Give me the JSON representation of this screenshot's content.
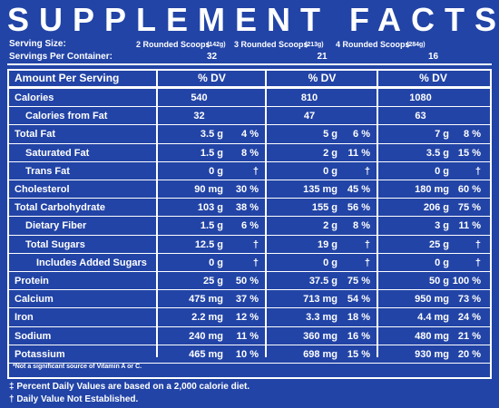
{
  "header": {
    "title": "SUPPLEMENT FACTS"
  },
  "serving_size": {
    "label": "Serving Size:",
    "sizes": [
      {
        "text": "2 Rounded Scoops",
        "weight": "(142g)"
      },
      {
        "text": "3 Rounded Scoops",
        "weight": "(213g)"
      },
      {
        "text": "4 Rounded Scoops",
        "weight": "(284g)"
      }
    ]
  },
  "servings_per_container": {
    "label": "Servings Per Container:",
    "values": [
      "32",
      "21",
      "16"
    ]
  },
  "table": {
    "header": [
      "Amount Per Serving",
      "% DV",
      "% DV",
      "% DV"
    ],
    "rows": [
      {
        "name": "Calories",
        "cells": [
          [
            "540"
          ],
          [
            "810"
          ],
          [
            "1080"
          ]
        ],
        "rows": [
          {
            "name": "Calories from Fat",
            "cells": [
              [
                "32"
              ],
              [
                "47"
              ],
              [
                "63"
              ]
            ]
          }
        ]
      },
      {
        "name": "Total Fat",
        "cells": [
          [
            "3.5 g",
            "4 %"
          ],
          [
            "5 g",
            "6 %"
          ],
          [
            "7 g",
            "8 %"
          ]
        ],
        "rows": [
          {
            "name": "Saturated Fat",
            "cells": [
              [
                "1.5 g",
                "8 %"
              ],
              [
                "2 g",
                "11 %"
              ],
              [
                "3.5 g",
                "15 %"
              ]
            ]
          },
          {
            "name": "Trans Fat",
            "cells": [
              [
                "0 g",
                "†"
              ],
              [
                "0 g",
                "†"
              ],
              [
                "0 g",
                "†"
              ]
            ]
          }
        ]
      },
      {
        "name": "Cholesterol",
        "cells": [
          [
            "90 mg",
            "30 %"
          ],
          [
            "135 mg",
            "45 %"
          ],
          [
            "180 mg",
            "60 %"
          ]
        ]
      },
      {
        "name": "Total Carbohydrate",
        "cells": [
          [
            "103 g",
            "38 %"
          ],
          [
            "155 g",
            "56 %"
          ],
          [
            "206 g",
            "75 %"
          ]
        ],
        "rows": [
          {
            "name": "Dietary Fiber",
            "cells": [
              [
                "1.5 g",
                "6 %"
              ],
              [
                "2 g",
                "8 %"
              ],
              [
                "3 g",
                "11 %"
              ]
            ]
          },
          {
            "name": "Total Sugars",
            "cells": [
              [
                "12.5 g",
                "†"
              ],
              [
                "19 g",
                "†"
              ],
              [
                "25 g",
                "†"
              ]
            ],
            "rows": [
              {
                "name": "Includes Added Sugars",
                "cells": [
                  [
                    "0 g",
                    "†"
                  ],
                  [
                    "0 g",
                    "†"
                  ],
                  [
                    "0 g",
                    "†"
                  ]
                ]
              }
            ]
          }
        ]
      },
      {
        "name": "Protein",
        "cells": [
          [
            "25 g",
            "50 %"
          ],
          [
            "37.5 g",
            "75 %"
          ],
          [
            "50 g",
            "100 %"
          ]
        ]
      },
      {
        "name": "Calcium",
        "cells": [
          [
            "475 mg",
            "37 %"
          ],
          [
            "713 mg",
            "54 %"
          ],
          [
            "950 mg",
            "73 %"
          ]
        ]
      },
      {
        "name": "Iron",
        "cells": [
          [
            "2.2 mg",
            "12 %"
          ],
          [
            "3.3 mg",
            "18 %"
          ],
          [
            "4.4 mg",
            "24 %"
          ]
        ]
      },
      {
        "name": "Sodium",
        "cells": [
          [
            "240 mg",
            "11 %"
          ],
          [
            "360 mg",
            "16 %"
          ],
          [
            "480 mg",
            "21 %"
          ]
        ]
      },
      {
        "name": "Potassium",
        "cells": [
          [
            "465 mg",
            "10 %"
          ],
          [
            "698 mg",
            "15 %"
          ],
          [
            "930 mg",
            "20 %"
          ]
        ]
      }
    ],
    "note": "*Not a significant source of Vitamin A or C."
  },
  "footer": [
    "‡ Percent Daily Values are based on a 2,000 calorie diet.",
    "† Daily Value Not Established."
  ]
}
